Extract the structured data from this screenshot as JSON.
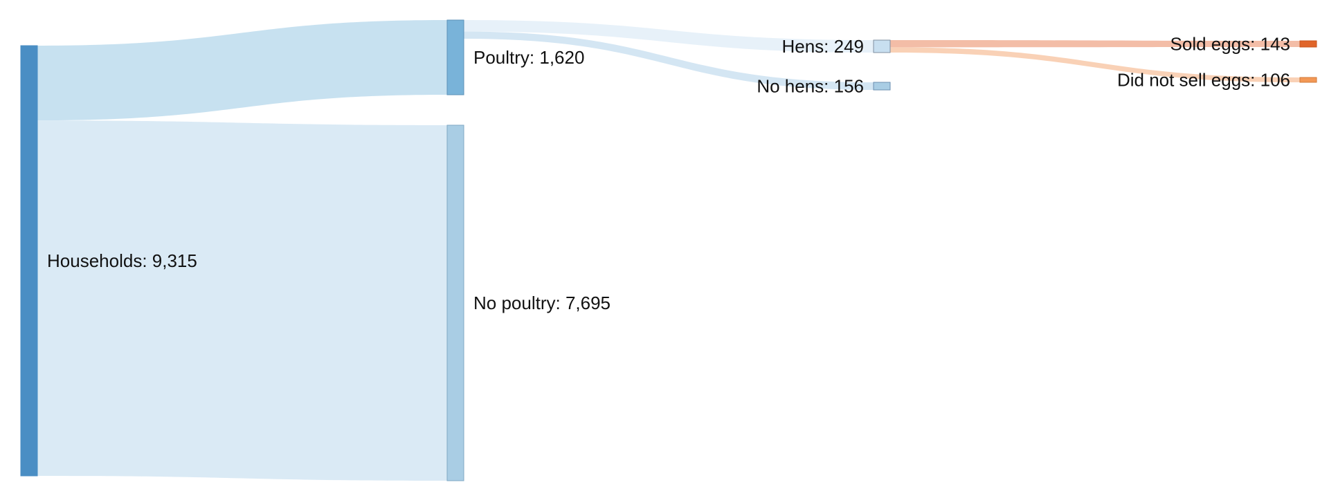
{
  "chart_data": {
    "type": "sankey",
    "nodes": [
      {
        "id": "households",
        "name": "Households",
        "value": 9315,
        "label": "Households: 9,315",
        "color": "#4a8ec4",
        "stroke": "#4a8ec4"
      },
      {
        "id": "poultry",
        "name": "Poultry",
        "value": 1620,
        "label": "Poultry: 1,620",
        "color": "#79b3d9",
        "stroke": "#5d92b8"
      },
      {
        "id": "no_poultry",
        "name": "No poultry",
        "value": 7695,
        "label": "No poultry: 7,695",
        "color": "#a9cde4",
        "stroke": "#7fa8c4"
      },
      {
        "id": "hens",
        "name": "Hens",
        "value": 249,
        "label": "Hens: 249",
        "color": "#c8dff0",
        "stroke": "#7f8fa0"
      },
      {
        "id": "no_hens",
        "name": "No hens",
        "value": 156,
        "label": "No hens: 156",
        "color": "#a9cde4",
        "stroke": "#6b8fb0"
      },
      {
        "id": "sold_eggs",
        "name": "Sold eggs",
        "value": 143,
        "label": "Sold eggs: 143",
        "color": "#e0652a",
        "stroke": "#c9551f"
      },
      {
        "id": "not_sold_eggs",
        "name": "Did not sell eggs",
        "value": 106,
        "label": "Did not sell eggs: 106",
        "color": "#f39855",
        "stroke": "#d07a3a"
      }
    ],
    "links": [
      {
        "source": "households",
        "target": "poultry",
        "value": 1620,
        "color": "#c4dfef"
      },
      {
        "source": "households",
        "target": "no_poultry",
        "value": 7695,
        "color": "#d8e9f4"
      },
      {
        "source": "poultry",
        "target": "hens",
        "value": 249,
        "color": "#e6f0f9"
      },
      {
        "source": "poultry",
        "target": "no_hens",
        "value": 156,
        "color": "#d2e5f2"
      },
      {
        "source": "hens",
        "target": "sold_eggs",
        "value": 143,
        "color": "#f2b9a2"
      },
      {
        "source": "hens",
        "target": "not_sold_eggs",
        "value": 106,
        "color": "#f9cfb2"
      }
    ]
  }
}
